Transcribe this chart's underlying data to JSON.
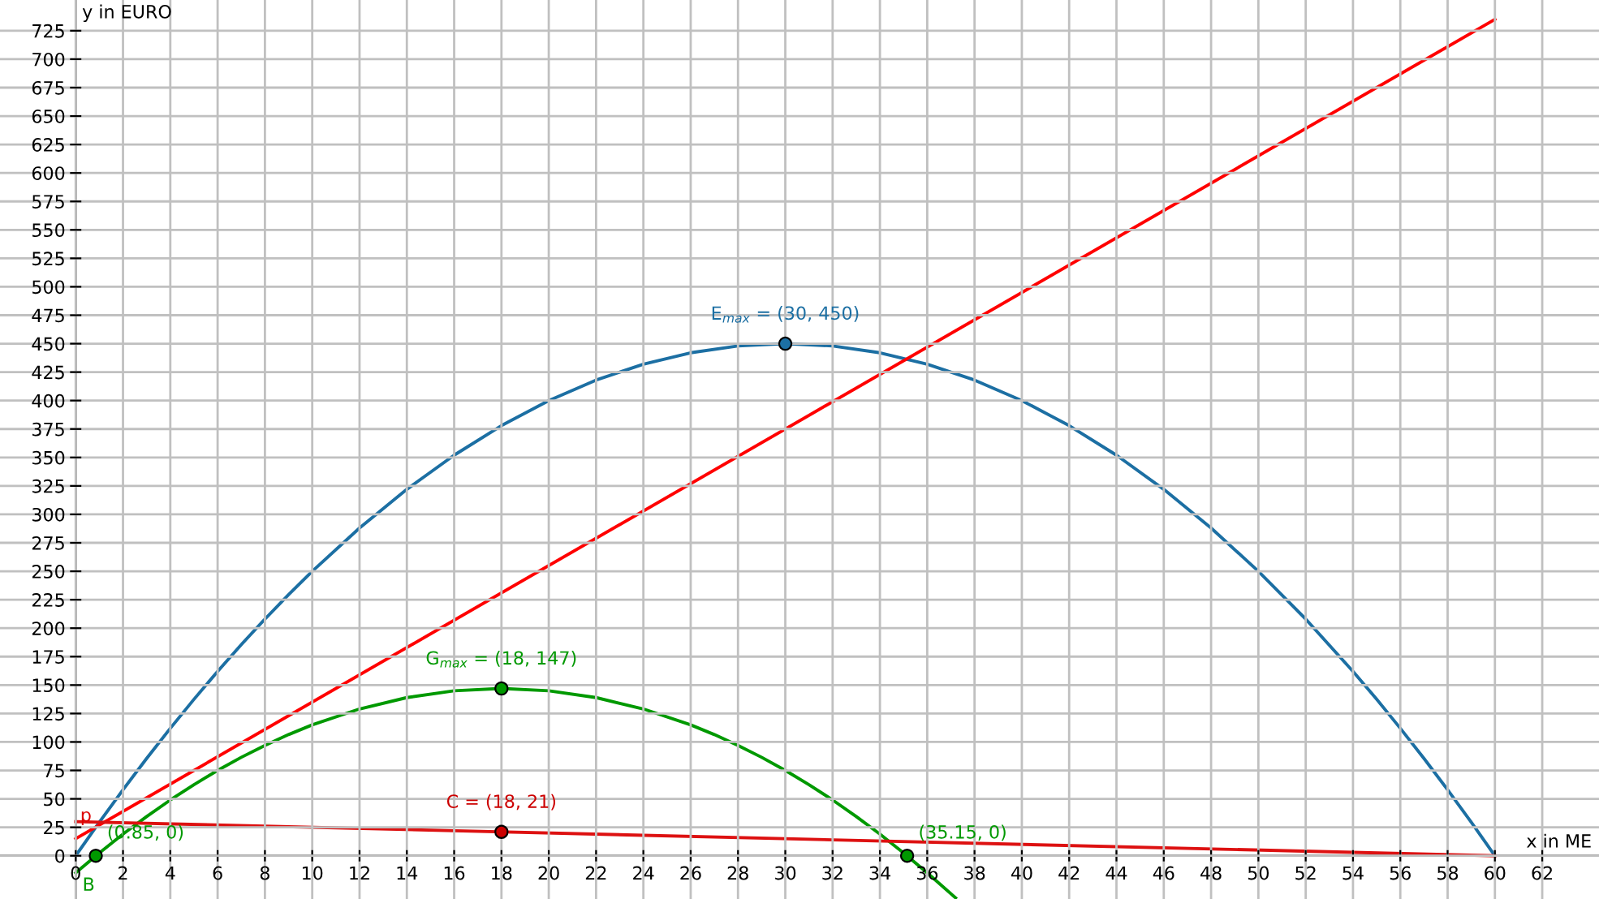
{
  "chart_data": {
    "type": "line",
    "xlabel": "x in ME",
    "ylabel": "y in EURO",
    "xlim": [
      -3.2,
      64.4
    ],
    "ylim": [
      -38,
      752
    ],
    "xticks": [
      0,
      2,
      4,
      6,
      8,
      10,
      12,
      14,
      16,
      18,
      20,
      22,
      24,
      26,
      28,
      30,
      32,
      34,
      36,
      38,
      40,
      42,
      44,
      46,
      48,
      50,
      52,
      54,
      56,
      58,
      60,
      62
    ],
    "yticks": [
      0,
      25,
      50,
      75,
      100,
      125,
      150,
      175,
      200,
      225,
      250,
      275,
      300,
      325,
      350,
      375,
      400,
      425,
      450,
      475,
      500,
      525,
      550,
      575,
      600,
      625,
      650,
      675,
      700,
      725
    ],
    "grid": true,
    "line_style": "solid",
    "series": [
      {
        "color": "#1c6fa3",
        "x": [
          0,
          1,
          2,
          3,
          4,
          5,
          6,
          7,
          8,
          9,
          10,
          12,
          14,
          16,
          18,
          20,
          22,
          24,
          26,
          28,
          30,
          32,
          34,
          36,
          38,
          40,
          42,
          44,
          46,
          48,
          50,
          52,
          54,
          55,
          56,
          57,
          58,
          59,
          60
        ],
        "values": [
          0,
          29.5,
          58,
          85.5,
          112,
          137.5,
          162,
          185.5,
          208,
          229.5,
          250,
          288,
          322,
          352,
          378,
          400,
          418,
          432,
          442,
          448,
          450,
          448,
          442,
          432,
          418,
          400,
          378,
          352,
          322,
          288,
          250,
          208,
          162,
          137.5,
          112,
          85.5,
          58,
          29.5,
          0
        ]
      },
      {
        "color": "#ff0000",
        "x": [
          0,
          60
        ],
        "values": [
          15,
          735
        ]
      },
      {
        "color": "#009900",
        "x": [
          0,
          1,
          2,
          3,
          4,
          5,
          6,
          7,
          8,
          9,
          10,
          12,
          14,
          16,
          18,
          20,
          22,
          24,
          26,
          27,
          28,
          29,
          30,
          31,
          32,
          33,
          34,
          35,
          36,
          37.2
        ],
        "values": [
          -15,
          2.5,
          19,
          34.5,
          49,
          62.5,
          75,
          86.5,
          97,
          106.5,
          115,
          129,
          139,
          145,
          147,
          145,
          139,
          129,
          115,
          106.5,
          97,
          86.5,
          75,
          62.5,
          49,
          34.5,
          19,
          2.5,
          -15,
          -37
        ]
      },
      {
        "color": "#dd1111",
        "x": [
          0,
          60
        ],
        "values": [
          30,
          0
        ]
      },
      {
        "type": "scatter",
        "marker": "circle",
        "x": [
          30,
          18,
          18,
          0.85,
          35.15
        ],
        "values": [
          450,
          147,
          21,
          0,
          0
        ],
        "colors": [
          "#1c6fa3",
          "#009900",
          "#cc0000",
          "#009900",
          "#009900"
        ]
      }
    ],
    "annotations": [
      {
        "text": "E$_{max}$ = (30, 450)",
        "x": 30,
        "y": 450
      },
      {
        "text": "G$_{max}$ = (18, 147)",
        "x": 18,
        "y": 147
      },
      {
        "text": "C = (18, 21)",
        "x": 18,
        "y": 21
      },
      {
        "text": "(0.85, 0)",
        "x": 0.85,
        "y": 0
      },
      {
        "text": "(35.15, 0)",
        "x": 35.15,
        "y": 0
      },
      {
        "text": "p",
        "x": 0,
        "y": 15
      },
      "B"
    ]
  }
}
